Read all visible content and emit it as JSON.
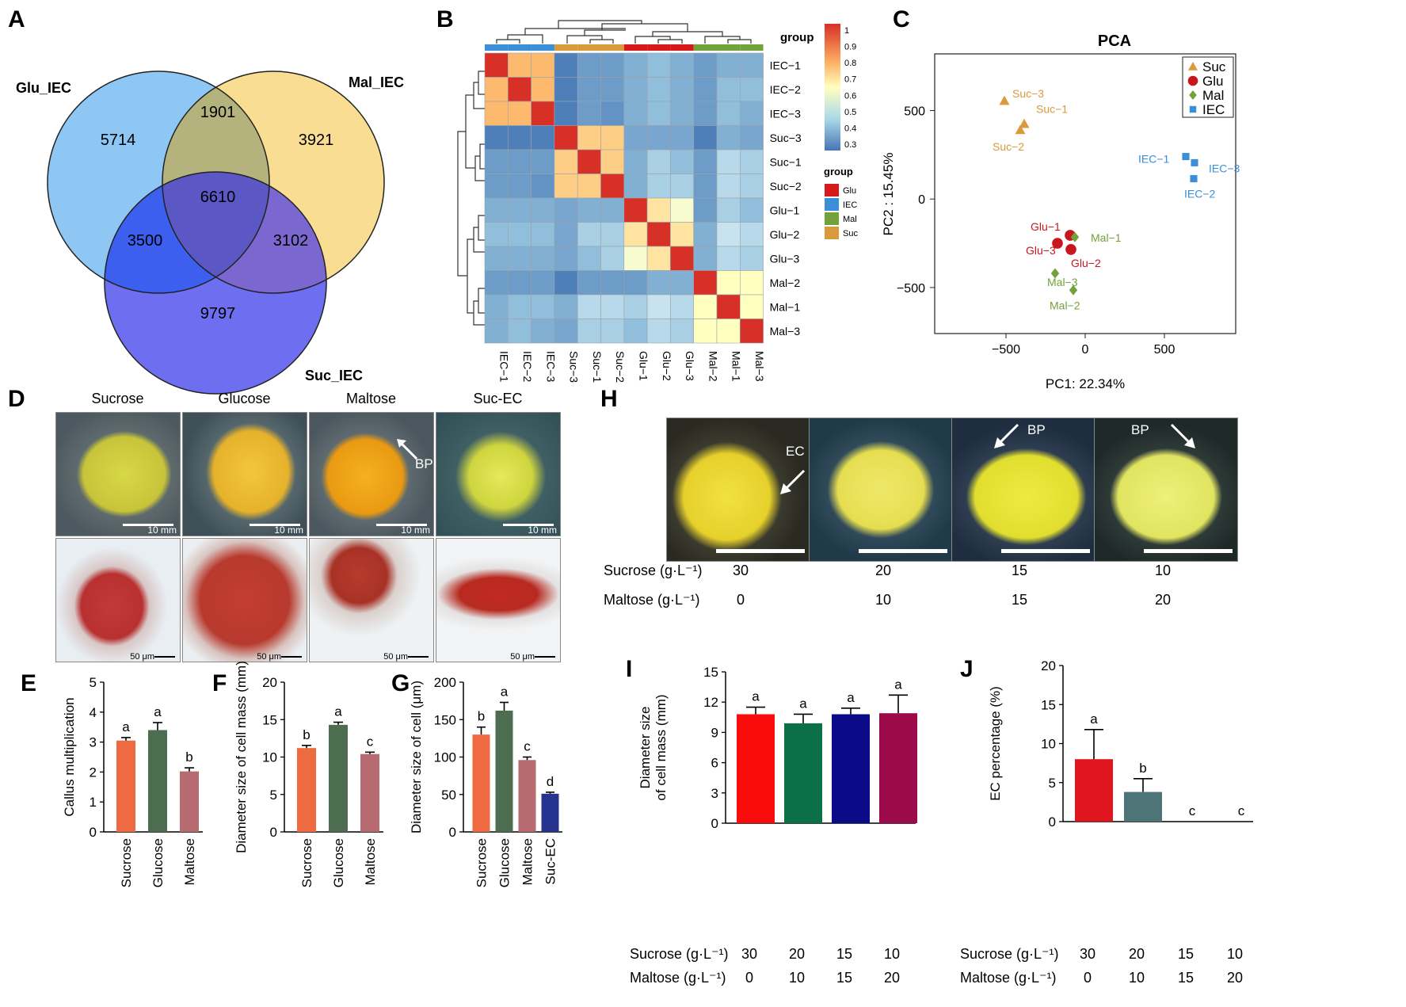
{
  "panels": {
    "A": "A",
    "B": "B",
    "C": "C",
    "D": "D",
    "E": "E",
    "F": "F",
    "G": "G",
    "H": "H",
    "I": "I",
    "J": "J"
  },
  "venn": {
    "set_labels": [
      "Glu_IEC",
      "Mal_IEC",
      "Suc_IEC"
    ],
    "colors": {
      "glu": "#6fb4ef",
      "mal": "#f8d98a",
      "suc": "#6a6be8"
    },
    "counts": {
      "glu_only": "5714",
      "mal_only": "3921",
      "suc_only": "9797",
      "glu_mal": "1901",
      "glu_suc": "3500",
      "mal_suc": "3102",
      "all": "6610"
    }
  },
  "heatmap": {
    "samples": [
      "IEC−1",
      "IEC−2",
      "IEC−3",
      "Suc−3",
      "Suc−1",
      "Suc−2",
      "Glu−1",
      "Glu−2",
      "Glu−3",
      "Mal−2",
      "Mal−1",
      "Mal−3"
    ],
    "groups": [
      "IEC",
      "IEC",
      "IEC",
      "Suc",
      "Suc",
      "Suc",
      "Glu",
      "Glu",
      "Glu",
      "Mal",
      "Mal",
      "Mal"
    ],
    "group_title": "group",
    "legend_groups": [
      "Glu",
      "IEC",
      "Mal",
      "Suc"
    ],
    "group_colors": {
      "Glu": "#d7191c",
      "IEC": "#3a8fd6",
      "Mal": "#74a23a",
      "Suc": "#d99a3c"
    },
    "scale_ticks": [
      "1",
      "0.9",
      "0.8",
      "0.7",
      "0.6",
      "0.5",
      "0.4",
      "0.3"
    ],
    "matrix": [
      [
        1.0,
        0.78,
        0.78,
        0.32,
        0.38,
        0.38,
        0.42,
        0.45,
        0.42,
        0.38,
        0.42,
        0.42
      ],
      [
        0.78,
        1.0,
        0.78,
        0.32,
        0.38,
        0.38,
        0.42,
        0.45,
        0.42,
        0.38,
        0.45,
        0.45
      ],
      [
        0.78,
        0.78,
        1.0,
        0.32,
        0.38,
        0.36,
        0.42,
        0.45,
        0.42,
        0.38,
        0.45,
        0.42
      ],
      [
        0.32,
        0.32,
        0.32,
        1.0,
        0.74,
        0.74,
        0.4,
        0.4,
        0.4,
        0.32,
        0.42,
        0.4
      ],
      [
        0.38,
        0.38,
        0.38,
        0.74,
        1.0,
        0.74,
        0.42,
        0.48,
        0.45,
        0.38,
        0.5,
        0.48
      ],
      [
        0.38,
        0.38,
        0.36,
        0.74,
        0.74,
        1.0,
        0.42,
        0.48,
        0.48,
        0.38,
        0.5,
        0.48
      ],
      [
        0.42,
        0.42,
        0.42,
        0.4,
        0.42,
        0.42,
        1.0,
        0.7,
        0.62,
        0.38,
        0.48,
        0.45
      ],
      [
        0.45,
        0.45,
        0.45,
        0.4,
        0.48,
        0.48,
        0.7,
        1.0,
        0.7,
        0.42,
        0.52,
        0.5
      ],
      [
        0.42,
        0.42,
        0.42,
        0.4,
        0.45,
        0.48,
        0.62,
        0.7,
        1.0,
        0.42,
        0.5,
        0.48
      ],
      [
        0.38,
        0.38,
        0.38,
        0.32,
        0.38,
        0.38,
        0.38,
        0.42,
        0.42,
        1.0,
        0.65,
        0.65
      ],
      [
        0.42,
        0.45,
        0.45,
        0.42,
        0.5,
        0.5,
        0.48,
        0.52,
        0.5,
        0.65,
        1.0,
        0.65
      ],
      [
        0.42,
        0.45,
        0.42,
        0.4,
        0.48,
        0.48,
        0.45,
        0.5,
        0.48,
        0.65,
        0.65,
        1.0
      ]
    ]
  },
  "chart_data": [
    {
      "panel": "C",
      "type": "scatter",
      "title": "PCA",
      "xlabel": "PC1: 22.34%",
      "ylabel": "PC2 :  15.45%",
      "xlim": [
        -950,
        950
      ],
      "ylim": [
        -760,
        820
      ],
      "xticks": [
        "−500",
        "0",
        "500"
      ],
      "xtick_values": [
        -500,
        0,
        500
      ],
      "yticks": [
        "500",
        "0",
        "−500"
      ],
      "ytick_values": [
        500,
        0,
        -500
      ],
      "legend": [
        "Suc",
        "Glu",
        "Mal",
        "IEC"
      ],
      "colors": {
        "Suc": "#d99a3c",
        "Glu": "#c8161d",
        "Mal": "#74a23a",
        "IEC": "#3a8fd6"
      },
      "points": [
        {
          "label": "Suc−3",
          "group": "Suc",
          "x": -510,
          "y": 555
        },
        {
          "label": "Suc−1",
          "group": "Suc",
          "x": -385,
          "y": 425
        },
        {
          "label": "Suc−2",
          "group": "Suc",
          "x": -410,
          "y": 390
        },
        {
          "label": "IEC−1",
          "group": "IEC",
          "x": 635,
          "y": 240
        },
        {
          "label": "IEC−3",
          "group": "IEC",
          "x": 690,
          "y": 205
        },
        {
          "label": "IEC−2",
          "group": "IEC",
          "x": 685,
          "y": 115
        },
        {
          "label": "Glu−1",
          "group": "Glu",
          "x": -95,
          "y": -205
        },
        {
          "label": "Glu−3",
          "group": "Glu",
          "x": -175,
          "y": -250
        },
        {
          "label": "Glu−2",
          "group": "Glu",
          "x": -90,
          "y": -285
        },
        {
          "label": "Mal−1",
          "group": "Mal",
          "x": -65,
          "y": -215
        },
        {
          "label": "Mal−3",
          "group": "Mal",
          "x": -190,
          "y": -420
        },
        {
          "label": "Mal−2",
          "group": "Mal",
          "x": -75,
          "y": -515
        }
      ]
    },
    {
      "panel": "E",
      "type": "bar",
      "ylabel": "Callus multiplication",
      "categories": [
        "Sucrose",
        "Glucose",
        "Maltose"
      ],
      "values": [
        3.05,
        3.4,
        2.02
      ],
      "errors": [
        0.1,
        0.25,
        0.12
      ],
      "letters": [
        "a",
        "a",
        "b"
      ],
      "colors": [
        "#ee6a40",
        "#4c6d4f",
        "#b76a70"
      ],
      "ylim": [
        0,
        5
      ],
      "yticks": [
        "0",
        "1",
        "2",
        "3",
        "4",
        "5"
      ]
    },
    {
      "panel": "F",
      "type": "bar",
      "ylabel": "Diameter size of cell mass (mm)",
      "categories": [
        "Sucrose",
        "Glucose",
        "Maltose"
      ],
      "values": [
        11.2,
        14.3,
        10.4
      ],
      "errors": [
        0.35,
        0.35,
        0.25
      ],
      "letters": [
        "b",
        "a",
        "c"
      ],
      "colors": [
        "#ee6a40",
        "#4c6d4f",
        "#b76a70"
      ],
      "ylim": [
        0,
        20
      ],
      "yticks": [
        "0",
        "5",
        "10",
        "15",
        "20"
      ]
    },
    {
      "panel": "G",
      "type": "bar",
      "ylabel": "Diameter size of cell (μm)",
      "categories": [
        "Sucrose",
        "Glucose",
        "Maltose",
        "Suc-EC"
      ],
      "values": [
        130,
        162,
        96,
        51
      ],
      "errors": [
        10,
        11,
        4,
        2
      ],
      "letters": [
        "b",
        "a",
        "c",
        "d"
      ],
      "colors": [
        "#ee6a40",
        "#4c6d4f",
        "#b76a70",
        "#26348f"
      ],
      "ylim": [
        0,
        200
      ],
      "yticks": [
        "0",
        "50",
        "100",
        "150",
        "200"
      ]
    },
    {
      "panel": "I",
      "type": "bar",
      "ylabel": "Diameter size of cell mass (mm)",
      "ylabel_lines": [
        "Diameter size",
        "of cell mass (mm)"
      ],
      "categories": [
        "30",
        "20",
        "15",
        "10"
      ],
      "values": [
        10.8,
        9.9,
        10.8,
        10.9
      ],
      "errors": [
        0.7,
        0.9,
        0.6,
        1.8
      ],
      "letters": [
        "a",
        "a",
        "a",
        "a"
      ],
      "colors": [
        "#f80c0c",
        "#0b7045",
        "#0b0b8a",
        "#9c0a4a"
      ],
      "ylim": [
        0,
        15
      ],
      "yticks": [
        "0",
        "3",
        "6",
        "9",
        "12",
        "15"
      ]
    },
    {
      "panel": "J",
      "type": "bar",
      "ylabel": "EC percentage (%)",
      "categories": [
        "30",
        "20",
        "15",
        "10"
      ],
      "values": [
        8.0,
        3.8,
        0,
        0
      ],
      "errors": [
        3.8,
        1.7,
        0,
        0
      ],
      "letters": [
        "a",
        "b",
        "c",
        "c"
      ],
      "colors": [
        "#e01520",
        "#4d7477",
        "#888888",
        "#888888"
      ],
      "ylim": [
        0,
        20
      ],
      "yticks": [
        "0",
        "5",
        "10",
        "15",
        "20"
      ]
    }
  ],
  "panel_d": {
    "columns": [
      "Sucrose",
      "Glucose",
      "Maltose",
      "Suc-EC"
    ],
    "scale_top": "10 mm",
    "scale_bottom": "50 μm",
    "arrow_label": "BP"
  },
  "panel_h": {
    "row1_label": "Sucrose (g·L⁻¹)",
    "row2_label": "Maltose (g·L⁻¹)",
    "sucrose": [
      "30",
      "20",
      "15",
      "10"
    ],
    "maltose": [
      "0",
      "10",
      "15",
      "20"
    ],
    "arrow_labels": [
      "EC",
      "BP",
      "BP"
    ]
  },
  "axis_rows": {
    "sucrose_label": "Sucrose (g·L⁻¹)",
    "maltose_label": "Maltose (g·L⁻¹)",
    "I_sucrose": [
      "30",
      "20",
      "15",
      "10"
    ],
    "I_maltose": [
      "0",
      "10",
      "15",
      "20"
    ],
    "J_sucrose": [
      "30",
      "20",
      "15",
      "10"
    ],
    "J_maltose": [
      "0",
      "10",
      "15",
      "20"
    ]
  }
}
